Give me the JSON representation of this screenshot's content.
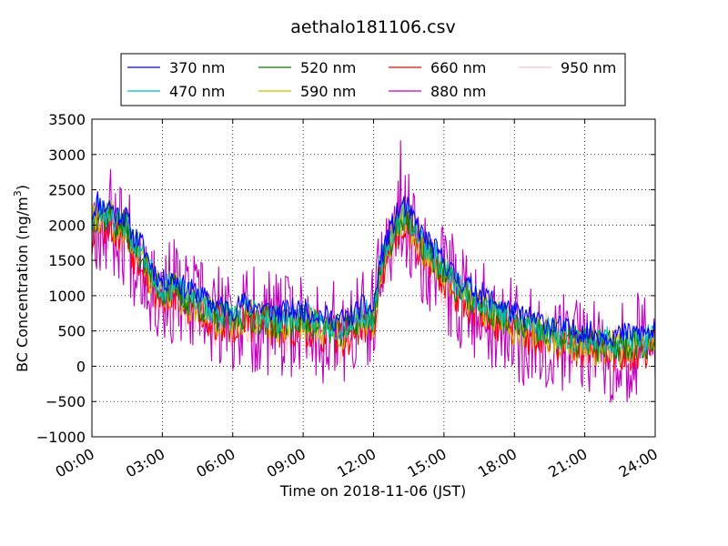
{
  "chart_data": {
    "type": "line",
    "title": "aethalo181106.csv",
    "xlabel": "Time on 2018-11-06 (JST)",
    "ylabel": "BC Concentration (ng/m³)",
    "ylabel_main": "BC Concentration (ng/m",
    "ylabel_sup": "3",
    "ylabel_end": ")",
    "x_unit": "hours",
    "xlim": [
      0,
      24
    ],
    "ylim": [
      -1000,
      3500
    ],
    "x_ticks": [
      0,
      3,
      6,
      9,
      12,
      15,
      18,
      21,
      24
    ],
    "x_tick_labels": [
      "00:00",
      "03:00",
      "06:00",
      "09:00",
      "12:00",
      "15:00",
      "18:00",
      "21:00",
      "24:00"
    ],
    "y_ticks": [
      -1000,
      -500,
      0,
      500,
      1000,
      1500,
      2000,
      2500,
      3000,
      3500
    ],
    "y_tick_labels": [
      "−1000",
      "−500",
      "0",
      "500",
      "1000",
      "1500",
      "2000",
      "2500",
      "3000",
      "3500"
    ],
    "grid": true,
    "legend_position": "top",
    "legend_columns": 4,
    "anchors": {
      "x": [
        0,
        0.25,
        0.5,
        0.75,
        1,
        1.25,
        1.5,
        1.75,
        2,
        2.25,
        2.5,
        2.75,
        3,
        3.5,
        4,
        4.5,
        5,
        5.5,
        6,
        6.5,
        7,
        7.5,
        8,
        8.5,
        9,
        9.5,
        10,
        10.5,
        11,
        11.5,
        12,
        12.25,
        12.5,
        12.75,
        13,
        13.25,
        13.5,
        13.75,
        14,
        14.5,
        15,
        15.5,
        16,
        16.5,
        17,
        17.5,
        18,
        18.5,
        19,
        19.5,
        20,
        20.5,
        21,
        21.5,
        22,
        22.5,
        23,
        23.5,
        24
      ],
      "y": [
        2000,
        2200,
        2100,
        2150,
        2000,
        2000,
        1950,
        1700,
        1650,
        1500,
        1300,
        1150,
        1050,
        1100,
        950,
        900,
        750,
        700,
        650,
        750,
        700,
        650,
        600,
        650,
        650,
        600,
        550,
        500,
        550,
        700,
        650,
        1300,
        1600,
        1800,
        2000,
        2150,
        2050,
        1900,
        1750,
        1550,
        1350,
        1100,
        1000,
        900,
        800,
        700,
        600,
        550,
        500,
        450,
        400,
        350,
        350,
        300,
        300,
        300,
        320,
        330,
        320
      ]
    },
    "series": [
      {
        "name": "370 nm",
        "color": "#0000ff",
        "offset": 150,
        "noise": 170,
        "seed": 11
      },
      {
        "name": "470 nm",
        "color": "#00bfbf",
        "offset": 60,
        "noise": 210,
        "seed": 23
      },
      {
        "name": "520 nm",
        "color": "#008000",
        "offset": 0,
        "noise": 240,
        "seed": 37
      },
      {
        "name": "590 nm",
        "color": "#bfbf00",
        "offset": -30,
        "noise": 270,
        "seed": 41
      },
      {
        "name": "660 nm",
        "color": "#ff0000",
        "offset": -90,
        "noise": 300,
        "seed": 53
      },
      {
        "name": "880 nm",
        "color": "#bf00bf",
        "offset": -60,
        "noise": 780,
        "seed": 67
      },
      {
        "name": "950 nm",
        "color": "#ffc0cb",
        "offset": -100,
        "noise": 420,
        "seed": 79
      }
    ]
  }
}
